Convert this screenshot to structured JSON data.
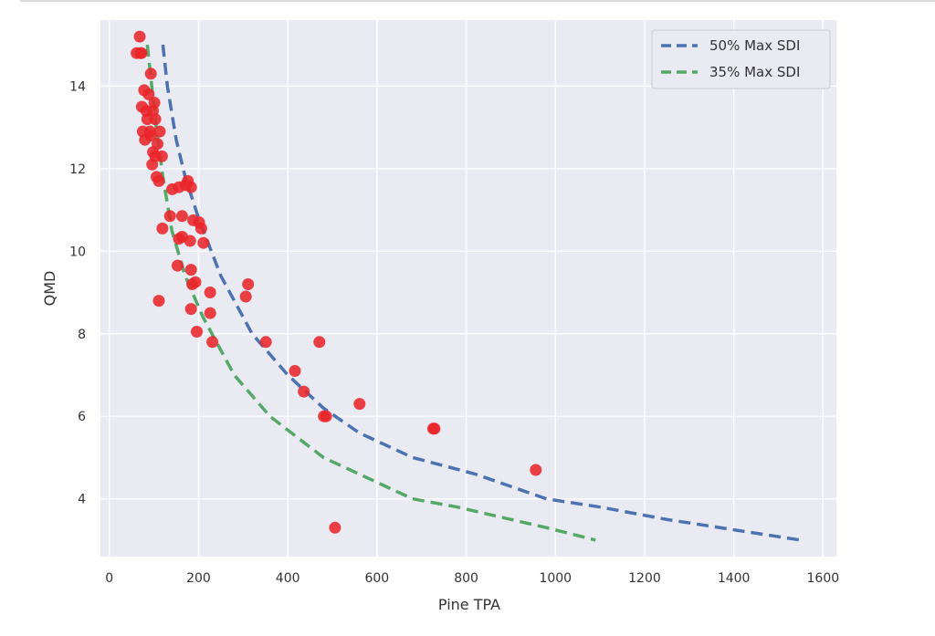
{
  "chart_data": {
    "type": "scatter",
    "xlabel": "Pine TPA",
    "ylabel": "QMD",
    "xlim": [
      -20,
      1630
    ],
    "ylim": [
      2.6,
      15.6
    ],
    "xticks": [
      "0",
      "200",
      "400",
      "600",
      "800",
      "1000",
      "1200",
      "1400",
      "1600"
    ],
    "yticks": [
      "4",
      "6",
      "8",
      "10",
      "12",
      "14"
    ],
    "xtick_values": [
      0,
      200,
      400,
      600,
      800,
      1000,
      1200,
      1400,
      1600
    ],
    "ytick_values": [
      4,
      6,
      8,
      10,
      12,
      14
    ],
    "grid": true,
    "legend_position": "top-right",
    "series": [
      {
        "name": "50% Max SDI",
        "kind": "line",
        "style": "dashed",
        "color": "#4c72b0",
        "x": [
          120,
          130,
          150,
          170,
          200,
          250,
          320,
          400,
          480,
          560,
          680,
          820,
          980,
          1100,
          1250,
          1400,
          1550
        ],
        "y": [
          15.0,
          14.0,
          12.7,
          11.8,
          10.8,
          9.4,
          8.0,
          7.0,
          6.2,
          5.6,
          5.0,
          4.6,
          4.0,
          3.8,
          3.5,
          3.25,
          3.0
        ]
      },
      {
        "name": "35% Max SDI",
        "kind": "line",
        "style": "dashed",
        "color": "#55a868",
        "x": [
          85,
          95,
          105,
          120,
          140,
          170,
          210,
          280,
          360,
          480,
          560,
          680,
          780,
          880,
          980,
          1090
        ],
        "y": [
          15.0,
          14.0,
          13.0,
          11.8,
          10.5,
          9.4,
          8.4,
          7.0,
          6.0,
          5.0,
          4.6,
          4.0,
          3.8,
          3.55,
          3.3,
          3.0
        ]
      },
      {
        "name": "",
        "kind": "scatter",
        "color": "#e8262a",
        "x": [
          68,
          61,
          70,
          72,
          93,
          78,
          88,
          101,
          73,
          83,
          98,
          103,
          85,
          91,
          113,
          75,
          93,
          80,
          108,
          98,
          103,
          118,
          96,
          106,
          111,
          176,
          171,
          156,
          183,
          141,
          188,
          201,
          119,
          163,
          206,
          181,
          156,
          211,
          136,
          163,
          153,
          183,
          193,
          186,
          111,
          226,
          306,
          311,
          183,
          226,
          196,
          231,
          351,
          471,
          416,
          436,
          481,
          486,
          561,
          726,
          729,
          956,
          506
        ],
        "y": [
          15.2,
          14.8,
          14.8,
          14.8,
          14.3,
          13.9,
          13.8,
          13.6,
          13.5,
          13.4,
          13.4,
          13.2,
          13.2,
          12.9,
          12.9,
          12.9,
          12.8,
          12.7,
          12.6,
          12.4,
          12.3,
          12.3,
          12.1,
          11.8,
          11.7,
          11.7,
          11.6,
          11.55,
          11.55,
          11.5,
          10.75,
          10.7,
          10.55,
          10.85,
          10.55,
          10.25,
          10.3,
          10.2,
          10.85,
          10.35,
          9.65,
          9.55,
          9.25,
          9.2,
          8.8,
          9.0,
          8.9,
          9.2,
          8.6,
          8.5,
          8.05,
          7.8,
          7.8,
          7.8,
          7.1,
          6.6,
          6.0,
          6.0,
          6.3,
          5.7,
          5.7,
          4.7,
          3.3
        ]
      }
    ]
  }
}
